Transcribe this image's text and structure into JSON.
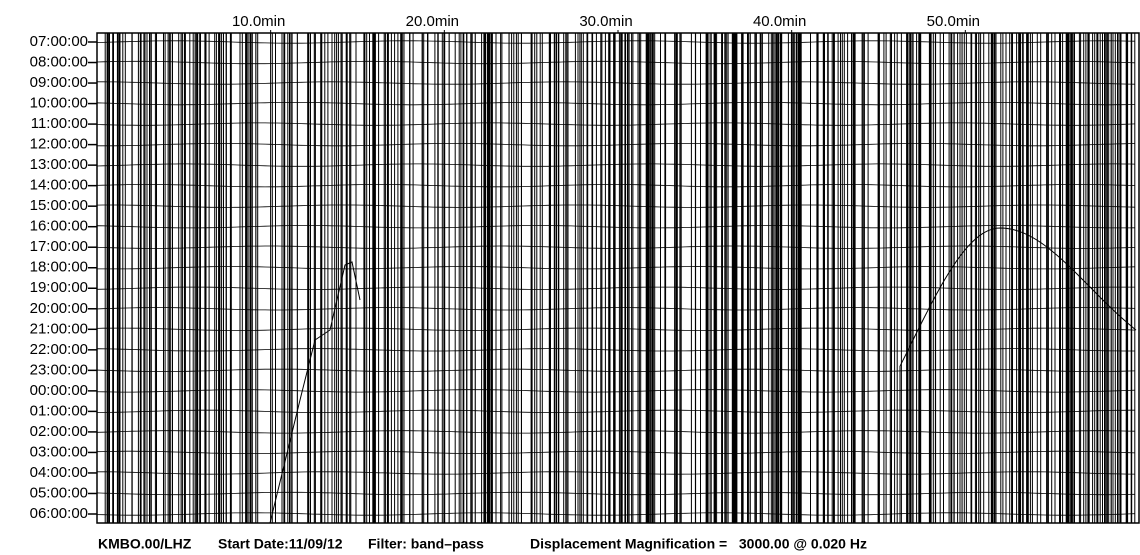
{
  "chart_data": {
    "type": "helicorder",
    "rows": [
      "07:00:00",
      "08:00:00",
      "09:00:00",
      "10:00:00",
      "11:00:00",
      "12:00:00",
      "13:00:00",
      "14:00:00",
      "15:00:00",
      "16:00:00",
      "17:00:00",
      "18:00:00",
      "19:00:00",
      "20:00:00",
      "21:00:00",
      "22:00:00",
      "23:00:00",
      "00:00:00",
      "01:00:00",
      "02:00:00",
      "03:00:00",
      "04:00:00",
      "05:00:00",
      "06:00:00"
    ],
    "xlim": [
      0,
      60
    ],
    "xticks": [
      {
        "value": 10,
        "label": "10.0min"
      },
      {
        "value": 20,
        "label": "20.0min"
      },
      {
        "value": 30,
        "label": "30.0min"
      },
      {
        "value": 40,
        "label": "40.0min"
      },
      {
        "value": 50,
        "label": "50.0min"
      }
    ],
    "footer": {
      "station": "KMBO.00/LHZ",
      "start_date": "Start Date:11/09/12",
      "filter": "Filter: band–pass",
      "magnification": "Displacement Magnification =   3000.00 @ 0.020 Hz"
    }
  }
}
